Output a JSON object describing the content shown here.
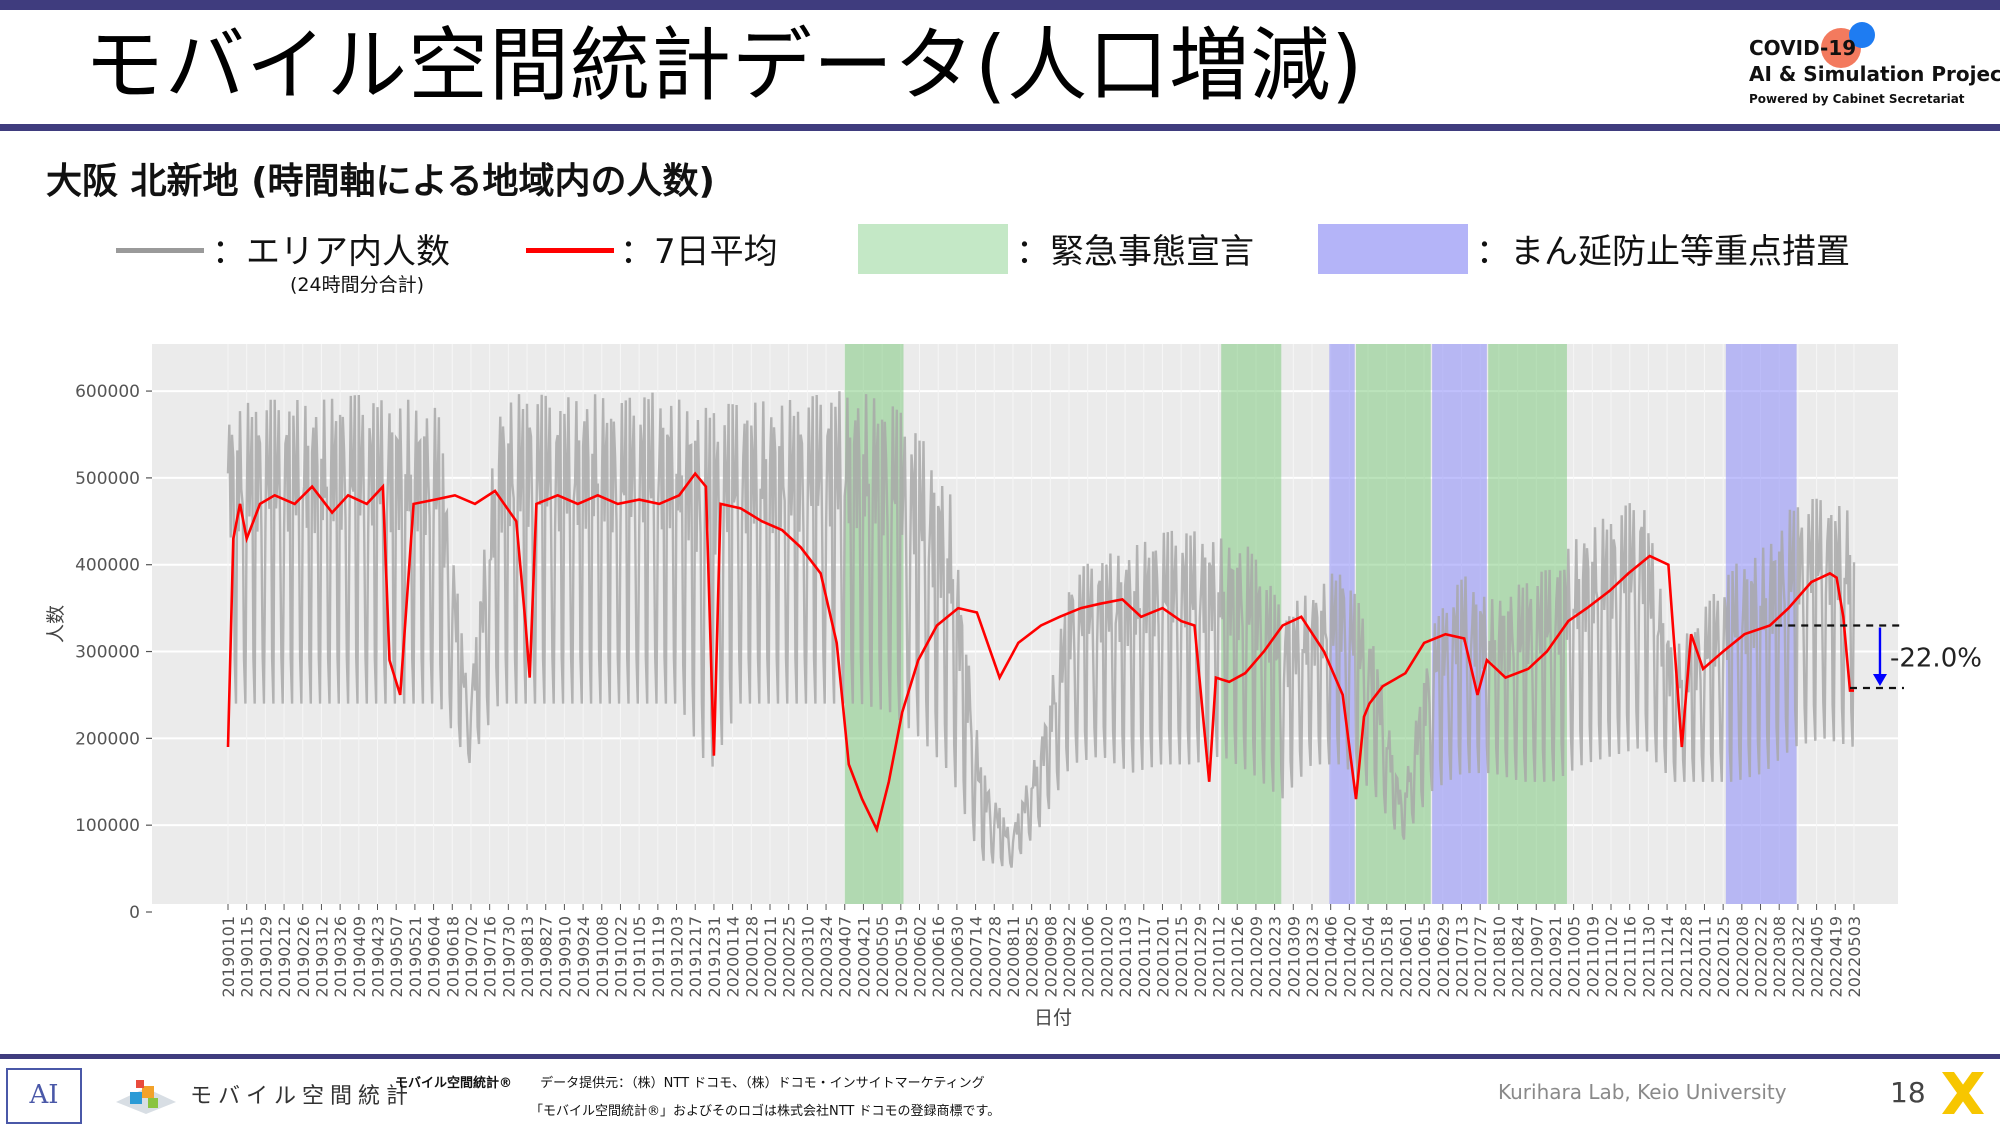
{
  "slide": {
    "title": "モバイル空間統計データ(人口増減)",
    "subtitle": "大阪 北新地 (時間軸による地域内の人数)",
    "page_number": "18",
    "lab_credit": "Kurihara Lab, Keio University"
  },
  "logo": {
    "line1": "COVID-19",
    "line2": "AI & Simulation Project",
    "line3": "Powered by Cabinet Secretariat",
    "dot_colors": [
      "#f26b4c",
      "#1e7cf2"
    ]
  },
  "legend": {
    "gray_label": "：エリア内人数",
    "gray_sublabel": "(24時間分合計)",
    "red_label": "：7日平均",
    "green_label": "：緊急事態宣言",
    "blue_label": "：まん延防止等重点措置",
    "colors": {
      "gray": "#9a9a9a",
      "red": "#ff0000",
      "green": "#a8dca8",
      "blue": "#a0a0f5"
    }
  },
  "footer": {
    "ai_logo_text": "AI",
    "mobile_logo_text": "モバイル空間統計",
    "credit_bold": "モバイル空間統計®",
    "credit_provider": "データ提供元：（株）NTT ドコモ、（株）ドコモ・インサイトマーケティング",
    "credit_trademark": "「モバイル空間統計®」およびそのロゴは株式会社NTT ドコモの登録商標です。"
  },
  "chart_data": {
    "type": "line",
    "xlabel": "日付",
    "ylabel": "人数",
    "ylim": [
      0,
      645000
    ],
    "yticks": [
      0,
      100000,
      200000,
      300000,
      400000,
      500000,
      600000
    ],
    "ytick_labels": [
      "0",
      "100000",
      "200000",
      "300000",
      "400000",
      "500000",
      "600000"
    ],
    "x_range_days": [
      0,
      1236
    ],
    "xticks": [
      "20190101",
      "20190115",
      "20190129",
      "20190212",
      "20190226",
      "20190312",
      "20190326",
      "20190409",
      "20190423",
      "20190507",
      "20190521",
      "20190604",
      "20190618",
      "20190702",
      "20190716",
      "20190730",
      "20190813",
      "20190827",
      "20190910",
      "20190924",
      "20191008",
      "20191022",
      "20191105",
      "20191119",
      "20191203",
      "20191217",
      "20191231",
      "20200114",
      "20200128",
      "20200211",
      "20200225",
      "20200310",
      "20200324",
      "20200407",
      "20200421",
      "20200505",
      "20200519",
      "20200602",
      "20200616",
      "20200630",
      "20200714",
      "20200728",
      "20200811",
      "20200825",
      "20200908",
      "20200922",
      "20201006",
      "20201020",
      "20201103",
      "20201117",
      "20201201",
      "20201215",
      "20201229",
      "20210112",
      "20210126",
      "20210209",
      "20210223",
      "20210309",
      "20210323",
      "20210406",
      "20210420",
      "20210504",
      "20210518",
      "20210601",
      "20210615",
      "20210629",
      "20210713",
      "20210727",
      "20210810",
      "20210824",
      "20210907",
      "20210921",
      "20211005",
      "20211019",
      "20211102",
      "20211116",
      "20211130",
      "20211214",
      "20211228",
      "20220111",
      "20220125",
      "20220208",
      "20220222",
      "20220308",
      "20220322",
      "20220405",
      "20220419",
      "20220503"
    ],
    "shaded_periods": [
      {
        "kind": "green",
        "start": "20200407",
        "end": "20200521"
      },
      {
        "kind": "green",
        "start": "20210114",
        "end": "20210228"
      },
      {
        "kind": "blue",
        "start": "20210405",
        "end": "20210424"
      },
      {
        "kind": "green",
        "start": "20210425",
        "end": "20210620"
      },
      {
        "kind": "blue",
        "start": "20210621",
        "end": "20210801"
      },
      {
        "kind": "green",
        "start": "20210802",
        "end": "20210930"
      },
      {
        "kind": "blue",
        "start": "20220127",
        "end": "20220321"
      }
    ],
    "series": [
      {
        "name": "7日平均",
        "color": "#ff0000",
        "x": [
          "20190101",
          "20190105",
          "20190110",
          "20190115",
          "20190125",
          "20190205",
          "20190220",
          "20190305",
          "20190320",
          "20190401",
          "20190415",
          "20190427",
          "20190502",
          "20190510",
          "20190520",
          "20190605",
          "20190620",
          "20190705",
          "20190720",
          "20190805",
          "20190812",
          "20190815",
          "20190820",
          "20190905",
          "20190920",
          "20191005",
          "20191020",
          "20191105",
          "20191120",
          "20191205",
          "20191217",
          "20191225",
          "20191231",
          "20200105",
          "20200120",
          "20200205",
          "20200220",
          "20200305",
          "20200320",
          "20200401",
          "20200410",
          "20200420",
          "20200501",
          "20200510",
          "20200520",
          "20200601",
          "20200615",
          "20200701",
          "20200715",
          "20200801",
          "20200815",
          "20200901",
          "20200915",
          "20201001",
          "20201015",
          "20201101",
          "20201115",
          "20201201",
          "20201215",
          "20201225",
          "20210105",
          "20210110",
          "20210120",
          "20210201",
          "20210215",
          "20210301",
          "20210315",
          "20210401",
          "20210415",
          "20210425",
          "20210501",
          "20210505",
          "20210515",
          "20210601",
          "20210615",
          "20210701",
          "20210715",
          "20210725",
          "20210801",
          "20210815",
          "20210901",
          "20210915",
          "20211001",
          "20211015",
          "20211101",
          "20211115",
          "20211201",
          "20211215",
          "20211225",
          "20220101",
          "20220110",
          "20220125",
          "20220210",
          "20220301",
          "20220315",
          "20220401",
          "20220415",
          "20220420",
          "20220425",
          "20220430",
          "20220503"
        ],
        "y": [
          190000,
          430000,
          470000,
          430000,
          470000,
          480000,
          470000,
          490000,
          460000,
          480000,
          470000,
          490000,
          290000,
          250000,
          470000,
          475000,
          480000,
          470000,
          485000,
          450000,
          330000,
          270000,
          470000,
          480000,
          470000,
          480000,
          470000,
          475000,
          470000,
          480000,
          505000,
          490000,
          180000,
          470000,
          465000,
          450000,
          440000,
          420000,
          390000,
          310000,
          170000,
          130000,
          95000,
          150000,
          230000,
          290000,
          330000,
          350000,
          345000,
          270000,
          310000,
          330000,
          340000,
          350000,
          355000,
          360000,
          340000,
          350000,
          335000,
          330000,
          150000,
          270000,
          265000,
          275000,
          300000,
          330000,
          340000,
          300000,
          250000,
          130000,
          225000,
          240000,
          260000,
          275000,
          310000,
          320000,
          315000,
          250000,
          290000,
          270000,
          280000,
          300000,
          335000,
          350000,
          370000,
          390000,
          410000,
          400000,
          190000,
          320000,
          280000,
          300000,
          320000,
          330000,
          350000,
          380000,
          390000,
          385000,
          340000,
          255000,
          255000
        ]
      },
      {
        "name": "エリア内人数",
        "color": "#9a9a9a",
        "weekday_upper_envelope": [
          580000,
          590000,
          590000,
          590000,
          600000,
          590000,
          590000,
          580000,
          240000,
          590000,
          600000,
          590000,
          600000,
          590000,
          600000,
          590000,
          580000,
          590000,
          590000,
          590000,
          600000,
          600000,
          590000,
          550000,
          480000,
          170000,
          90000,
          200000,
          390000,
          410000,
          420000,
          440000,
          440000,
          430000,
          420000,
          350000,
          370000,
          400000,
          320000,
          130000,
          330000,
          390000,
          360000,
          380000,
          400000,
          440000,
          460000,
          480000,
          300000,
          350000,
          400000,
          420000,
          470000,
          480000,
          460000
        ],
        "weekend_lower_envelope": [
          240000,
          240000,
          240000,
          240000,
          240000,
          240000,
          240000,
          240000,
          170000,
          240000,
          240000,
          240000,
          240000,
          240000,
          240000,
          240000,
          160000,
          240000,
          240000,
          240000,
          240000,
          240000,
          230000,
          200000,
          160000,
          60000,
          50000,
          100000,
          170000,
          180000,
          160000,
          170000,
          170000,
          180000,
          160000,
          130000,
          170000,
          170000,
          140000,
          80000,
          140000,
          160000,
          160000,
          150000,
          150000,
          170000,
          180000,
          190000,
          150000,
          150000,
          150000,
          160000,
          190000,
          200000,
          190000
        ]
      }
    ],
    "annotation": {
      "text": "-22.0%",
      "from_value": 330000,
      "to_value": 258000,
      "arrow_color": "#0000ff"
    }
  }
}
